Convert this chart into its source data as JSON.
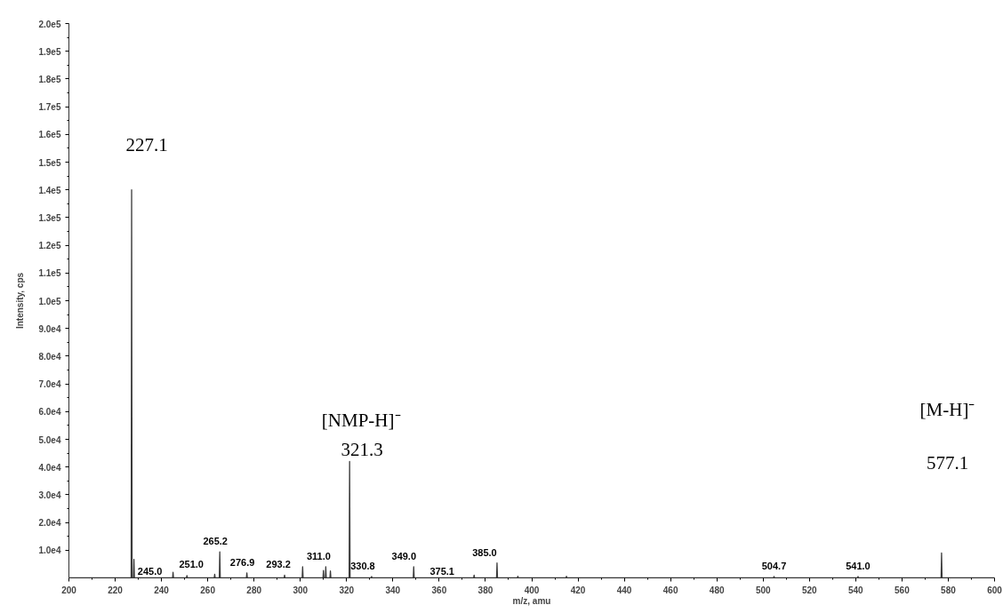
{
  "chart_data": {
    "type": "line",
    "xlabel": "m/z, amu",
    "ylabel": "Intensity, cps",
    "series": [
      {
        "color": "#3a3a3a",
        "x": [
          200,
          226.9,
          227.1,
          227.3,
          227.9,
          228.1,
          228.3,
          244.8,
          245.0,
          245.2,
          250.8,
          251.0,
          251.2,
          262.8,
          263.0,
          263.2,
          265.0,
          265.2,
          265.4,
          276.7,
          276.9,
          277.1,
          293.0,
          293.2,
          293.4,
          300.8,
          301.0,
          301.2,
          309.8,
          310.0,
          310.2,
          310.8,
          311.0,
          311.2,
          312.8,
          313.0,
          313.2,
          321.1,
          321.3,
          321.5,
          330.6,
          330.8,
          331.0,
          348.8,
          349.0,
          349.2,
          374.9,
          375.1,
          375.3,
          384.8,
          385.0,
          385.2,
          393.8,
          394.0,
          394.2,
          414.8,
          415.0,
          415.2,
          504.5,
          504.7,
          504.9,
          540.8,
          541.0,
          541.2,
          576.9,
          577.1,
          577.3,
          600
        ],
        "values": [
          0,
          0,
          140000,
          0,
          0,
          6700,
          0,
          0,
          2000,
          0,
          0,
          800,
          0,
          0,
          1300,
          0,
          0,
          9400,
          0,
          0,
          1800,
          0,
          0,
          1000,
          0,
          0,
          4000,
          0,
          0,
          2700,
          0,
          0,
          4000,
          0,
          0,
          2500,
          0,
          0,
          42000,
          0,
          0,
          500,
          0,
          0,
          4000,
          0,
          0,
          1000,
          0,
          0,
          5400,
          0,
          0,
          600,
          0,
          0,
          600,
          0,
          0,
          500,
          0,
          0,
          500,
          0,
          0,
          9000,
          0,
          0
        ]
      }
    ],
    "xlim": [
      200,
      600
    ],
    "ylim": [
      0,
      200000
    ],
    "xticks": [
      200,
      220,
      240,
      260,
      280,
      300,
      320,
      340,
      360,
      380,
      400,
      420,
      440,
      460,
      480,
      500,
      520,
      540,
      560,
      580,
      600
    ],
    "yticks": [
      {
        "value": 10000,
        "label": "1.0e4"
      },
      {
        "value": 20000,
        "label": "2.0e4"
      },
      {
        "value": 30000,
        "label": "3.0e4"
      },
      {
        "value": 40000,
        "label": "4.0e4"
      },
      {
        "value": 50000,
        "label": "5.0e4"
      },
      {
        "value": 60000,
        "label": "6.0e4"
      },
      {
        "value": 70000,
        "label": "7.0e4"
      },
      {
        "value": 80000,
        "label": "8.0e4"
      },
      {
        "value": 90000,
        "label": "9.0e4"
      },
      {
        "value": 100000,
        "label": "1.0e5"
      },
      {
        "value": 110000,
        "label": "1.1e5"
      },
      {
        "value": 120000,
        "label": "1.2e5"
      },
      {
        "value": 130000,
        "label": "1.3e5"
      },
      {
        "value": 140000,
        "label": "1.4e5"
      },
      {
        "value": 150000,
        "label": "1.5e5"
      },
      {
        "value": 160000,
        "label": "1.6e5"
      },
      {
        "value": 170000,
        "label": "1.7e5"
      },
      {
        "value": 180000,
        "label": "1.8e5"
      },
      {
        "value": 190000,
        "label": "1.9e5"
      },
      {
        "value": 200000,
        "label": "2.0e5"
      }
    ],
    "grid": false,
    "marker": "none",
    "line_style": "solid",
    "annotations": [
      {
        "text": "227.1",
        "x": 227.1,
        "y": 140000
      },
      {
        "text": "[NMP-H]⁻",
        "x": 321.3,
        "y": 42000
      },
      {
        "text": "321.3",
        "x": 321.3,
        "y": 42000
      },
      "[M-H]⁻",
      "577.1",
      {
        "text": "245.0",
        "x": 245.0,
        "y": 2000
      },
      {
        "text": "251.0",
        "x": 251.0,
        "y": 800
      },
      {
        "text": "265.2",
        "x": 265.2,
        "y": 9400
      },
      {
        "text": "276.9",
        "x": 276.9,
        "y": 1800
      },
      {
        "text": "293.2",
        "x": 293.2,
        "y": 1000
      },
      {
        "text": "311.0",
        "x": 311.0,
        "y": 4000
      },
      {
        "text": "330.8",
        "x": 330.8,
        "y": 500
      },
      {
        "text": "349.0",
        "x": 349.0,
        "y": 4000
      },
      {
        "text": "375.1",
        "x": 375.1,
        "y": 1000
      },
      {
        "text": "385.0",
        "x": 385.0,
        "y": 5400
      },
      {
        "text": "504.7",
        "x": 504.7,
        "y": 500
      },
      {
        "text": "541.0",
        "x": 541.0,
        "y": 500
      }
    ]
  }
}
